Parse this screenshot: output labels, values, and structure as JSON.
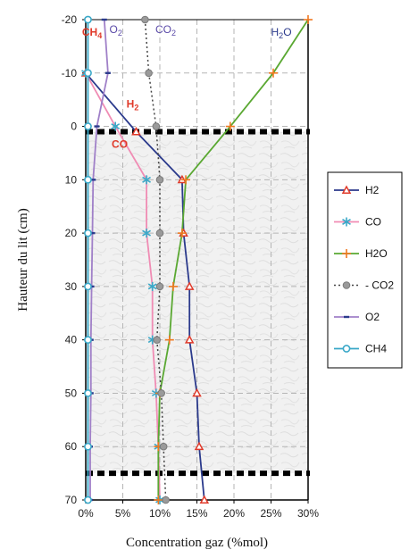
{
  "chart_data": {
    "type": "line",
    "orientation": "vertical-profile",
    "title": "",
    "xlabel": "Concentration  gaz (%mol)",
    "ylabel": "Hauteur du lit (cm)",
    "xlim": [
      0,
      30
    ],
    "ylim": [
      -20,
      70
    ],
    "y_inverted": true,
    "x_ticks": [
      0,
      5,
      10,
      15,
      20,
      25,
      30
    ],
    "x_tick_labels": [
      "0%",
      "5%",
      "10%",
      "15%",
      "20%",
      "25%",
      "30%"
    ],
    "y_ticks": [
      -20,
      -10,
      0,
      10,
      20,
      30,
      40,
      50,
      60,
      70
    ],
    "grid": true,
    "legend": "right",
    "bed_limits": [
      1,
      65
    ],
    "series": [
      {
        "name": "H2",
        "color": "#2b3a8c",
        "marker": "triangle",
        "dash": "solid",
        "points": [
          [
            0,
            -10
          ],
          [
            6.8,
            1
          ],
          [
            13,
            10
          ],
          [
            13.2,
            20
          ],
          [
            14,
            30
          ],
          [
            14,
            40
          ],
          [
            15,
            50
          ],
          [
            15.3,
            60
          ],
          [
            16,
            70
          ]
        ]
      },
      {
        "name": "CO",
        "color": "#f08cb4",
        "marker": "asterisk",
        "dash": "solid",
        "points": [
          [
            0,
            -10
          ],
          [
            4,
            0
          ],
          [
            8.2,
            10
          ],
          [
            8.2,
            20
          ],
          [
            9,
            30
          ],
          [
            9,
            40
          ],
          [
            9.5,
            50
          ],
          [
            9.8,
            60
          ],
          [
            10,
            70
          ]
        ]
      },
      {
        "name": "H2O",
        "color": "#5aa832",
        "marker": "plus",
        "dash": "solid",
        "points": [
          [
            30,
            -20
          ],
          [
            25.3,
            -10
          ],
          [
            19.5,
            0
          ],
          [
            13.5,
            10
          ],
          [
            13,
            20
          ],
          [
            11.8,
            30
          ],
          [
            11.3,
            40
          ],
          [
            10,
            50
          ],
          [
            9.8,
            60
          ],
          [
            9.8,
            70
          ]
        ]
      },
      {
        "name": "- CO2",
        "color": "#444444",
        "marker": "circle-gray",
        "dash": "dotted",
        "points": [
          [
            8,
            -20
          ],
          [
            8.5,
            -10
          ],
          [
            9.5,
            0
          ],
          [
            10,
            10
          ],
          [
            10,
            20
          ],
          [
            10,
            30
          ],
          [
            9.6,
            40
          ],
          [
            10.2,
            50
          ],
          [
            10.5,
            60
          ],
          [
            10.8,
            70
          ]
        ]
      },
      {
        "name": "O2",
        "color": "#a080c8",
        "marker": "dash",
        "dash": "solid",
        "points": [
          [
            2.5,
            -20
          ],
          [
            3,
            -10
          ],
          [
            1.5,
            0
          ],
          [
            1,
            10
          ],
          [
            0.9,
            20
          ],
          [
            0.8,
            30
          ],
          [
            0.7,
            40
          ],
          [
            0.7,
            50
          ],
          [
            0.6,
            60
          ],
          [
            0.6,
            70
          ]
        ]
      },
      {
        "name": "CH4",
        "color": "#3aa8c8",
        "marker": "circle-open",
        "dash": "solid",
        "points": [
          [
            0.3,
            -20
          ],
          [
            0.3,
            -10
          ],
          [
            0.3,
            0
          ],
          [
            0.3,
            10
          ],
          [
            0.3,
            20
          ],
          [
            0.3,
            30
          ],
          [
            0.3,
            40
          ],
          [
            0.3,
            50
          ],
          [
            0.3,
            60
          ],
          [
            0.3,
            70
          ]
        ]
      }
    ],
    "annotations": [
      {
        "text": "CH4",
        "sub": "",
        "html": "CH",
        "subscript": "4",
        "x": -0.5,
        "y": -17,
        "color": "#e03a2a"
      },
      {
        "text": "O2",
        "html": "O",
        "subscript": "2",
        "x": 3.2,
        "y": -17.5,
        "color": "#5a4aa8"
      },
      {
        "text": "CO2",
        "html": "CO",
        "subscript": "2",
        "x": 9.4,
        "y": -17.5,
        "color": "#5a4aa8"
      },
      {
        "text": "H2O",
        "html": "H",
        "subscript": "2",
        "suffix": "O",
        "x": 25,
        "y": -17,
        "color": "#2b3a8c"
      },
      {
        "text": "H2",
        "html": "H",
        "subscript": "2",
        "x": 5.5,
        "y": -3.5,
        "color": "#e03a2a"
      },
      {
        "text": "CO",
        "html": "CO",
        "subscript": "",
        "x": 3.5,
        "y": 4,
        "color": "#e03a2a"
      }
    ]
  }
}
